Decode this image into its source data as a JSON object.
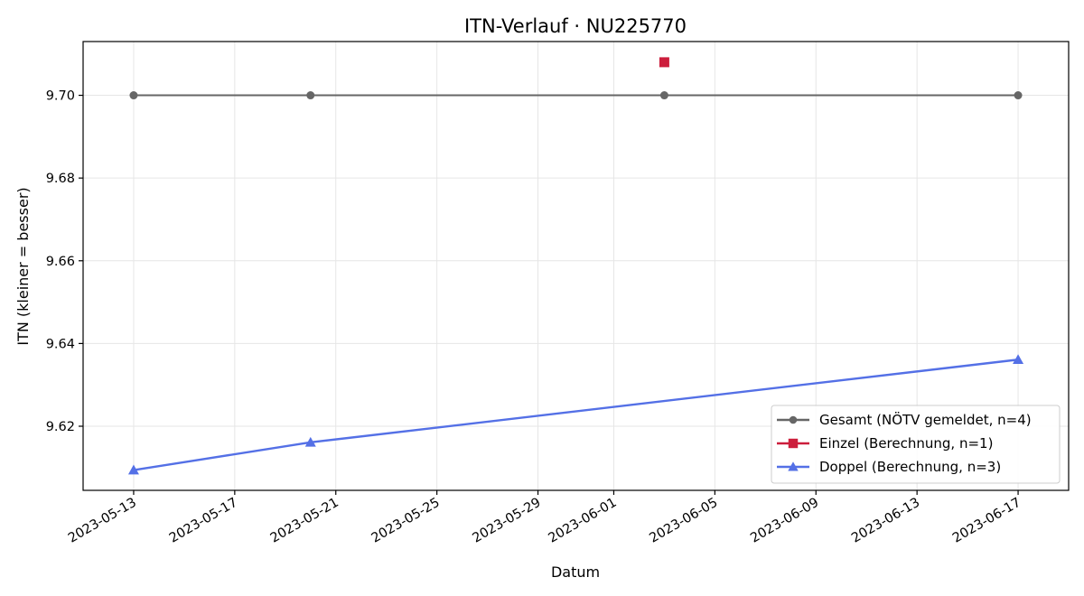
{
  "chart_data": {
    "type": "line",
    "title": "ITN-Verlauf · NU225770",
    "xlabel": "Datum",
    "ylabel": "ITN  (kleiner = besser)",
    "x_ticks": [
      "2023-05-13",
      "2023-05-17",
      "2023-05-21",
      "2023-05-25",
      "2023-05-29",
      "2023-06-01",
      "2023-06-05",
      "2023-06-09",
      "2023-06-13",
      "2023-06-17"
    ],
    "y_ticks": [
      9.62,
      9.64,
      9.66,
      9.68,
      9.7
    ],
    "y_tick_labels": [
      "9.62",
      "9.64",
      "9.66",
      "9.68",
      "9.70"
    ],
    "xlim": [
      "2023-05-11",
      "2023-06-19"
    ],
    "ylim": [
      9.6045,
      9.713
    ],
    "grid": true,
    "legend_position": "bottom-right",
    "series": [
      {
        "name": "Gesamt (NÖTV gemeldet, n=4)",
        "color": "#666666",
        "marker": "circle",
        "line": true,
        "points": [
          {
            "x": "2023-05-13",
            "y": 9.7
          },
          {
            "x": "2023-05-20",
            "y": 9.7
          },
          {
            "x": "2023-06-03",
            "y": 9.7
          },
          {
            "x": "2023-06-17",
            "y": 9.7
          }
        ]
      },
      {
        "name": "Einzel (Berechnung, n=1)",
        "color": "#cc1e3c",
        "marker": "square",
        "line": true,
        "points": [
          {
            "x": "2023-06-03",
            "y": 9.708
          }
        ]
      },
      {
        "name": "Doppel (Berechnung, n=3)",
        "color": "#5470e6",
        "marker": "triangle",
        "line": true,
        "points": [
          {
            "x": "2023-05-13",
            "y": 9.6094
          },
          {
            "x": "2023-05-20",
            "y": 9.6161
          },
          {
            "x": "2023-06-17",
            "y": 9.6361
          }
        ]
      }
    ]
  }
}
